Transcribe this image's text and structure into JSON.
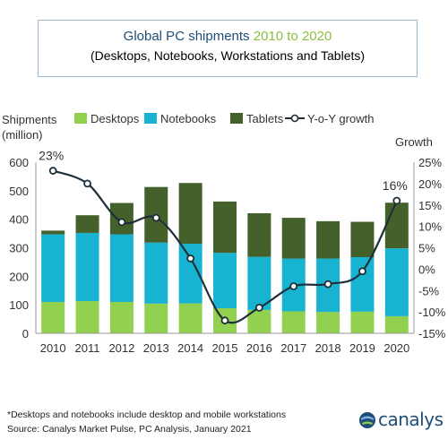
{
  "title": {
    "line1_prefix": "Global PC shipments ",
    "line1_years": "2010 to 2020",
    "line2": "(Desktops, Notebooks, Workstations and Tablets)"
  },
  "footnote": "*Desktops and notebooks include desktop and mobile workstations",
  "source": "Source: Canalys Market Pulse, PC Analysis, January 2021",
  "logo_text": "canalys",
  "colors": {
    "desktops": "#92d050",
    "notebooks": "#17b3d0",
    "tablets": "#44602b",
    "growth": "#1f2f3a",
    "title_accent": "#8cbf3f"
  },
  "chart_data": {
    "type": "bar",
    "stacked": true,
    "categories": [
      "2010",
      "2011",
      "2012",
      "2013",
      "2014",
      "2015",
      "2016",
      "2017",
      "2018",
      "2019",
      "2020"
    ],
    "series": [
      {
        "name": "Desktops",
        "values": [
          110,
          113,
          110,
          104,
          105,
          88,
          82,
          77,
          75,
          76,
          60
        ]
      },
      {
        "name": "Notebooks",
        "values": [
          237,
          239,
          237,
          214,
          209,
          194,
          186,
          185,
          187,
          191,
          238
        ]
      },
      {
        "name": "Tablets",
        "values": [
          13,
          62,
          110,
          195,
          213,
          180,
          153,
          143,
          131,
          124,
          160
        ]
      }
    ],
    "line_series": {
      "name": "Y-o-Y growth",
      "axis": "right",
      "values": [
        23,
        20,
        11,
        12,
        2.5,
        -12,
        -9,
        -4,
        -3.5,
        -0.5,
        16
      ]
    },
    "data_labels": [
      {
        "category": "2010",
        "text": "23%"
      },
      {
        "category": "2020",
        "text": "16%"
      }
    ],
    "ylabel_left": [
      "Shipments",
      "(million)"
    ],
    "ylabel_right": "Growth",
    "ylim_left": [
      0,
      600
    ],
    "yticks_left": [
      "0",
      "100",
      "200",
      "300",
      "400",
      "500",
      "600"
    ],
    "ylim_right": [
      -15,
      25
    ],
    "yticks_right": [
      "-15%",
      "-10%",
      "-5%",
      "0%",
      "5%",
      "10%",
      "15%",
      "20%",
      "25%"
    ],
    "legend": [
      "Desktops",
      "Notebooks",
      "Tablets",
      "Y-o-Y growth"
    ],
    "legend_position": "top",
    "grid": false
  }
}
